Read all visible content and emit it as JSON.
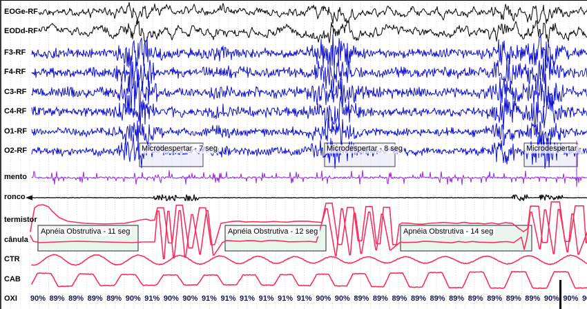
{
  "viewer": {
    "channels": [
      {
        "label": "EOGe-RF",
        "color": "#161616"
      },
      {
        "label": "EODd-RF",
        "color": "#161616"
      },
      {
        "label": "F3-RF",
        "color": "#0f10cf"
      },
      {
        "label": "F4-RF",
        "color": "#0f10cf"
      },
      {
        "label": "C3-RF",
        "color": "#0f10cf"
      },
      {
        "label": "C4-RF",
        "color": "#0f10cf"
      },
      {
        "label": "O1-RF",
        "color": "#0f10cf"
      },
      {
        "label": "O2-RF",
        "color": "#0f10cf"
      },
      {
        "label": "mento",
        "color": "#9a35d9"
      },
      {
        "label": "ronco",
        "color": "#161616"
      },
      {
        "label": "termistor",
        "color": "#f5305f"
      },
      {
        "label": "cânula",
        "color": "#f5305f"
      },
      {
        "label": "CTR",
        "color": "#f5305f"
      },
      {
        "label": "CAB",
        "color": "#f5305f"
      },
      {
        "label": "OXI",
        "color": "#161616"
      }
    ],
    "arousal_events": [
      {
        "label": "Microdespertar - 7 seg"
      },
      {
        "label": "Microdespertar - 8 seg"
      },
      {
        "label": "Microdespertar -"
      }
    ],
    "apnea_events": [
      {
        "label": "Apnéia Obstrutiva - 11 seg"
      },
      {
        "label": "Apnéia Obstrutiva - 12 seg"
      },
      {
        "label": "Apnéia Obstrutiva - 14 seg"
      }
    ],
    "spo2_values": [
      "90%",
      "89%",
      "89%",
      "89%",
      "89%",
      "90%",
      "91%",
      "90%",
      "90%",
      "91%",
      "91%",
      "91%",
      "91%",
      "91%",
      "91%",
      "90%",
      "90%",
      "89%",
      "89%",
      "89%",
      "89%",
      "89%",
      "89%",
      "89%",
      "89%",
      "89%",
      "89%",
      "90%",
      "90%",
      "90%"
    ],
    "colors": {
      "grid": "#ccd4cd",
      "arousal_box_fill": "#e6e6f4",
      "arousal_box_border": "#5a5a6e",
      "apnea_box_fill": "#e9f6ee",
      "apnea_box_border": "#44484a",
      "cursor": "#000000",
      "spo2_text": "#14184a"
    }
  }
}
